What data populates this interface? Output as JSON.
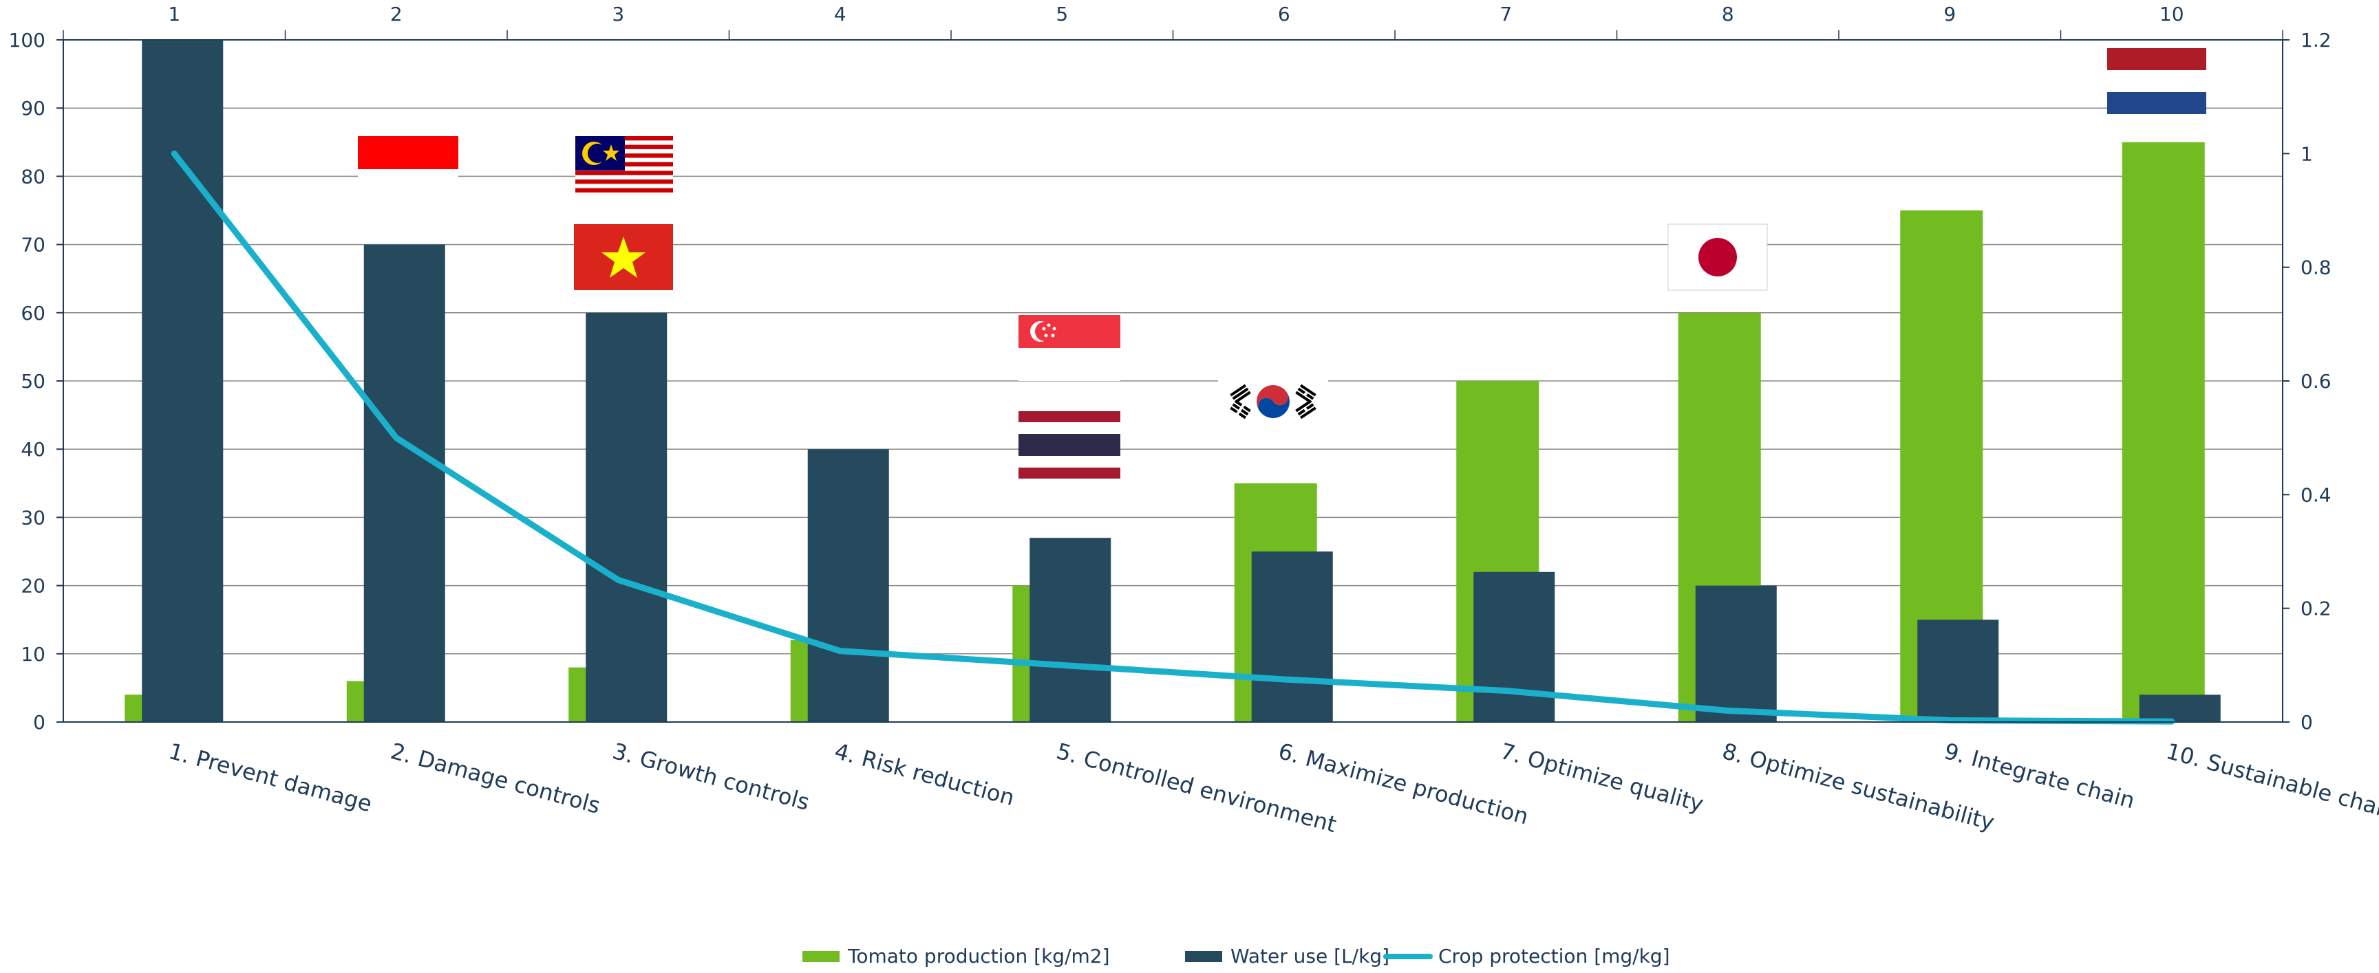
{
  "chart_data": {
    "type": "bar",
    "categories": [
      "1. Prevent damage",
      "2. Damage controls",
      "3. Growth controls",
      "4. Risk reduction",
      "5. Controlled environment",
      "6. Maximize production",
      "7. Optimize quality",
      "8. Optimize sustainability",
      "9. Integrate chain",
      "10. Sustainable chain"
    ],
    "top_axis_labels": [
      "1",
      "2",
      "3",
      "4",
      "5",
      "6",
      "7",
      "8",
      "9",
      "10"
    ],
    "series": [
      {
        "name": "Tomato production [kg/m2]",
        "kind": "bar",
        "axis": "left",
        "color": "#72bb20",
        "values": [
          4,
          6,
          8,
          12,
          20,
          35,
          50,
          60,
          75,
          85
        ]
      },
      {
        "name": "Water use [L/kg]",
        "kind": "bar",
        "axis": "left",
        "color": "#25495d",
        "values": [
          100,
          70,
          60,
          40,
          27,
          25,
          22,
          20,
          15,
          4
        ]
      },
      {
        "name": "Crop protection [mg/kg]",
        "kind": "line",
        "axis": "right",
        "color": "#1ab0cc",
        "values": [
          1.0,
          0.5,
          0.25,
          0.125,
          0.1,
          0.075,
          0.055,
          0.02,
          0.003,
          0.001
        ]
      }
    ],
    "y_left": {
      "min": 0,
      "max": 100,
      "ticks": [
        "0",
        "10",
        "20",
        "30",
        "40",
        "50",
        "60",
        "70",
        "80",
        "90",
        "100"
      ]
    },
    "y_right": {
      "min": 0,
      "max": 1.2,
      "ticks": [
        "0",
        "0.2",
        "0.4",
        "0.6",
        "0.8",
        "1",
        "1.2"
      ]
    },
    "grid": true,
    "legend_position": "bottom-center",
    "flags": [
      {
        "country": "indonesia-flag",
        "category": 2
      },
      {
        "country": "malaysia-flag",
        "category": 3
      },
      {
        "country": "vietnam-flag",
        "category": 3
      },
      {
        "country": "singapore-flag",
        "category": 5
      },
      {
        "country": "thailand-flag",
        "category": 5
      },
      {
        "country": "south-korea-flag",
        "category": 6
      },
      {
        "country": "japan-flag",
        "category": 8
      },
      {
        "country": "netherlands-flag",
        "category": 10
      }
    ]
  }
}
